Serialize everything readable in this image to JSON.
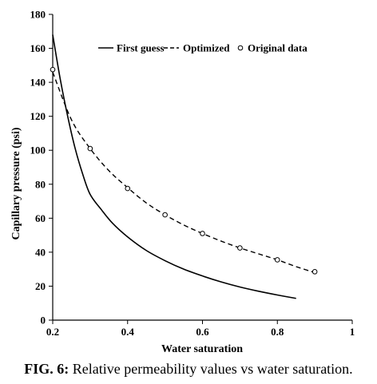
{
  "caption": {
    "label": "FIG. 6:",
    "text": "Relative permeability values vs water saturation."
  },
  "chart_data": {
    "type": "line",
    "title": "",
    "xlabel": "Water saturation",
    "ylabel": "Capillary pressure (psi)",
    "xlim": [
      0.2,
      1.0
    ],
    "ylim": [
      0,
      180
    ],
    "x_ticks": [
      0.2,
      0.4,
      0.6,
      0.8,
      1.0
    ],
    "x_tick_labels": [
      "0.2",
      "0.4",
      "0.6",
      "0.8",
      "1"
    ],
    "y_ticks": [
      0,
      20,
      40,
      60,
      80,
      100,
      120,
      140,
      160,
      180
    ],
    "y_tick_labels": [
      "0",
      "20",
      "40",
      "60",
      "80",
      "100",
      "120",
      "140",
      "160",
      "180"
    ],
    "grid": false,
    "legend_position": "top",
    "series": [
      {
        "name": "First guess",
        "style": "solid",
        "x": [
          0.2,
          0.22,
          0.24,
          0.26,
          0.28,
          0.3,
          0.33,
          0.36,
          0.4,
          0.45,
          0.5,
          0.55,
          0.6,
          0.65,
          0.7,
          0.75,
          0.8,
          0.85
        ],
        "y": [
          168,
          142,
          120,
          101,
          86,
          74,
          65,
          57,
          49,
          41,
          35,
          30,
          26,
          22.5,
          19.5,
          17,
          14.8,
          12.8
        ]
      },
      {
        "name": "Optimized",
        "style": "dashed",
        "x": [
          0.2,
          0.25,
          0.3,
          0.35,
          0.4,
          0.45,
          0.5,
          0.55,
          0.6,
          0.65,
          0.7,
          0.75,
          0.8,
          0.85,
          0.9
        ],
        "y": [
          146,
          118,
          101,
          88,
          78,
          69,
          62,
          56,
          51,
          46.5,
          42.5,
          39,
          35.5,
          31.5,
          28
        ]
      },
      {
        "name": "Original data",
        "style": "markers",
        "x": [
          0.2,
          0.3,
          0.4,
          0.5,
          0.6,
          0.7,
          0.8,
          0.9
        ],
        "y": [
          147.5,
          101,
          77.5,
          62,
          51,
          42.5,
          35.5,
          28.5
        ]
      }
    ]
  }
}
